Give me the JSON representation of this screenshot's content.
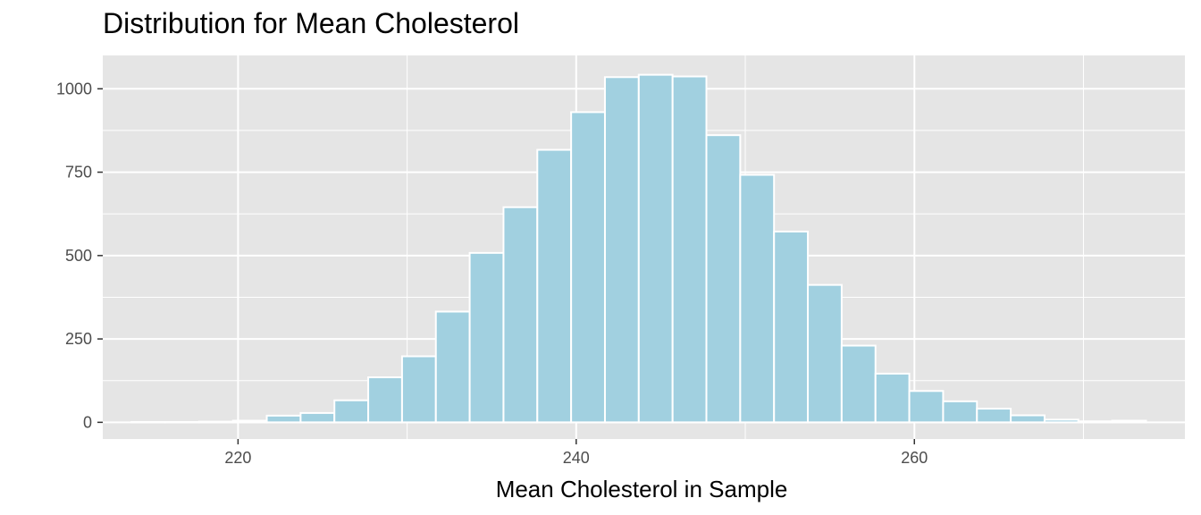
{
  "chart_data": {
    "type": "bar",
    "title": "Distribution for Mean Cholesterol",
    "xlabel": "Mean Cholesterol in Sample",
    "ylabel": "",
    "xlim": [
      212,
      276
    ],
    "ylim": [
      -50,
      1100
    ],
    "x_ticks": [
      "220",
      "240",
      "260"
    ],
    "x_tick_values": [
      220,
      240,
      260
    ],
    "y_ticks": [
      "0",
      "250",
      "500",
      "750",
      "1000"
    ],
    "y_tick_values": [
      0,
      250,
      500,
      750,
      1000
    ],
    "bin_width": 2,
    "bin_centers": [
      214.7,
      216.7,
      218.7,
      220.7,
      222.7,
      224.7,
      226.7,
      228.7,
      230.7,
      232.7,
      234.7,
      236.7,
      238.7,
      240.7,
      242.7,
      244.7,
      246.7,
      248.7,
      250.7,
      252.7,
      254.7,
      256.7,
      258.7,
      260.7,
      262.7,
      264.7,
      266.7,
      268.7,
      270.7,
      272.7
    ],
    "values": [
      1,
      1,
      2,
      5,
      20,
      28,
      66,
      135,
      198,
      332,
      508,
      645,
      817,
      930,
      1035,
      1042,
      1037,
      861,
      742,
      572,
      412,
      230,
      146,
      94,
      63,
      41,
      21,
      8,
      3,
      5
    ],
    "bar_color": "#a1d0e0",
    "bar_edge_color": "#ffffff",
    "panel_color": "#e5e5e5",
    "grid_color": "#ffffff",
    "grid": true,
    "legend": "none"
  }
}
